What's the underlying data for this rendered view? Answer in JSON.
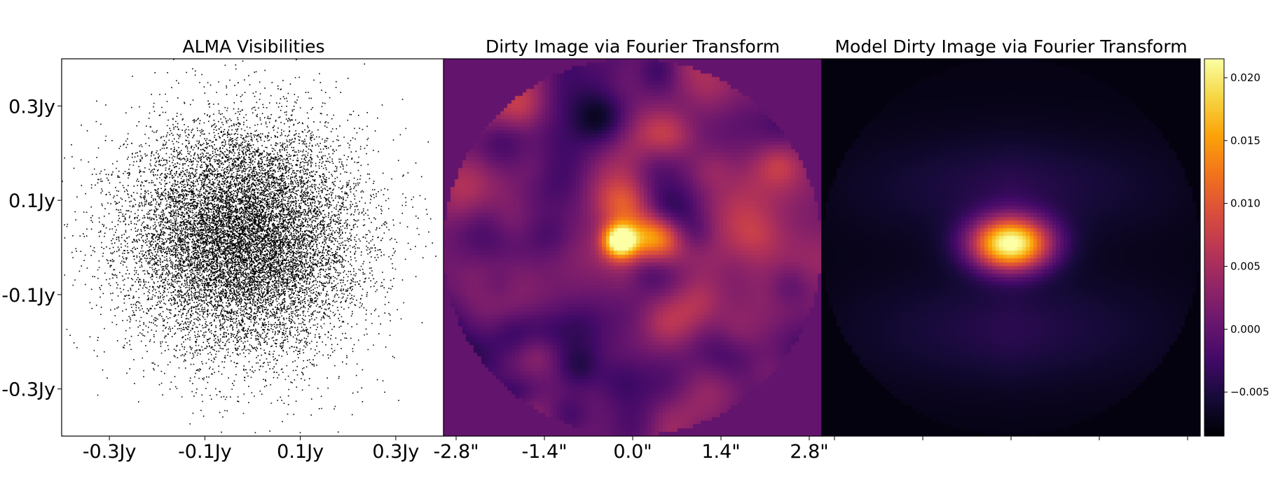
{
  "chart_data": [
    {
      "type": "scatter",
      "title": "ALMA Visibilities",
      "xlabel": "",
      "ylabel": "",
      "x_ticks": [
        {
          "value": -0.3,
          "label": "-0.3Jy"
        },
        {
          "value": -0.1,
          "label": "-0.1Jy"
        },
        {
          "value": 0.1,
          "label": "0.1Jy"
        },
        {
          "value": 0.3,
          "label": "0.3Jy"
        }
      ],
      "y_ticks": [
        {
          "value": 0.3,
          "label": "0.3Jy"
        },
        {
          "value": 0.1,
          "label": "0.1Jy"
        },
        {
          "value": -0.1,
          "label": "-0.1Jy"
        },
        {
          "value": -0.3,
          "label": "-0.3Jy"
        }
      ],
      "xlim": [
        -0.4,
        0.4
      ],
      "ylim": [
        -0.4,
        0.4
      ],
      "point_color": "#000000",
      "distribution": {
        "center": [
          -0.02,
          0.02
        ],
        "std": [
          0.12,
          0.12
        ],
        "n_points": 14000
      }
    },
    {
      "type": "heatmap",
      "title": "Dirty Image via Fourier Transform",
      "colormap": "inferno",
      "x_ticks": [
        {
          "value": -2.8,
          "label": "-2.8\""
        },
        {
          "value": -1.4,
          "label": "-1.4\""
        },
        {
          "value": 0.0,
          "label": "0.0\""
        },
        {
          "value": 1.4,
          "label": "1.4\""
        },
        {
          "value": 2.8,
          "label": "2.8\""
        }
      ],
      "xlim": [
        -3.0,
        3.0
      ],
      "ylim": [
        -3.0,
        3.0
      ],
      "mask_radius": 3.0,
      "background_value": 0.0,
      "features": [
        {
          "x": -0.2,
          "y": 0.1,
          "amp": 0.021,
          "sx": 0.18,
          "sy": 0.18
        },
        {
          "x": 0.35,
          "y": 0.15,
          "amp": 0.013,
          "sx": 0.3,
          "sy": 0.25
        },
        {
          "x": -0.1,
          "y": 0.7,
          "amp": 0.01,
          "sx": 0.3,
          "sy": 0.3
        },
        {
          "x": 0.1,
          "y": -0.2,
          "amp": 0.006,
          "sx": 0.5,
          "sy": 0.35
        }
      ],
      "noise_amplitude": 0.0055
    },
    {
      "type": "heatmap",
      "title": "Model Dirty Image via Fourier Transform",
      "colormap": "inferno",
      "x_ticks_minor": [
        -2.8,
        -1.4,
        0.0,
        1.4,
        2.8
      ],
      "xlim": [
        -3.0,
        3.0
      ],
      "ylim": [
        -3.0,
        3.0
      ],
      "mask_radius": 3.0,
      "background_value": -0.0078,
      "features": [
        {
          "x": 0.0,
          "y": 0.05,
          "amp": 0.029,
          "sx": 0.45,
          "sy": 0.3
        }
      ],
      "bands": [
        {
          "y": 0.95,
          "amp": 0.0035,
          "sy": 0.55
        },
        {
          "y": -1.3,
          "amp": 0.0035,
          "sy": 0.6
        }
      ],
      "floor_value": -0.0075
    }
  ],
  "colorbar": {
    "colormap": "inferno",
    "vmin": -0.0085,
    "vmax": 0.0215,
    "ticks": [
      {
        "value": 0.02,
        "label": "0.020"
      },
      {
        "value": 0.015,
        "label": "0.015"
      },
      {
        "value": 0.01,
        "label": "0.010"
      },
      {
        "value": 0.005,
        "label": "0.005"
      },
      {
        "value": 0.0,
        "label": "0.000"
      },
      {
        "value": -0.005,
        "label": "−0.005"
      }
    ]
  }
}
